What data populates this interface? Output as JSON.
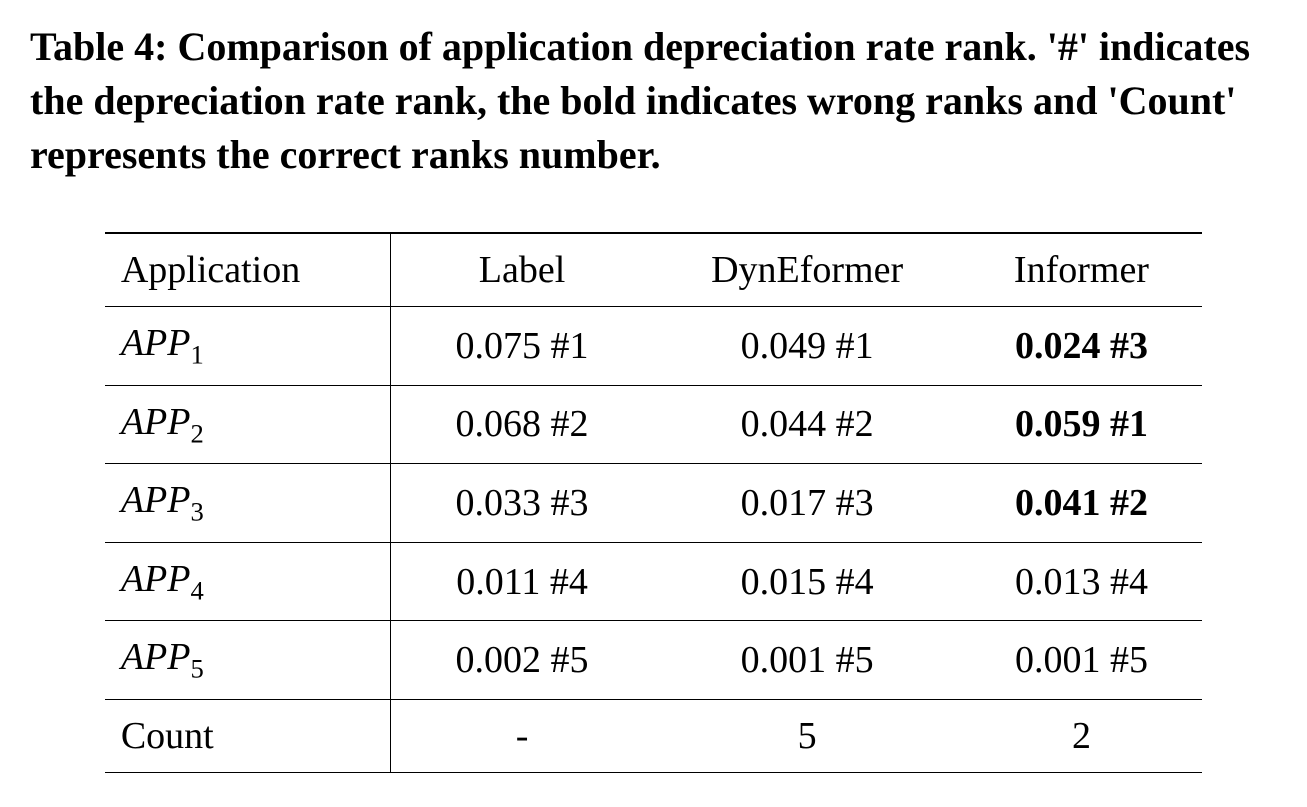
{
  "caption": "Table 4: Comparison of application depreciation rate rank. '#' indicates the depreciation rate rank, the bold indicates wrong ranks and 'Count' represents the correct ranks number.",
  "table": {
    "type": "table",
    "columns": [
      "Application",
      "Label",
      "DynEformer",
      "Informer"
    ],
    "col_widths": [
      "26%",
      "24%",
      "28%",
      "22%"
    ],
    "rows": [
      {
        "app_base": "APP",
        "app_sub": "1",
        "label": "0.075 #1",
        "dyneformer": "0.049 #1",
        "informer": "0.024 #3",
        "informer_bold": true
      },
      {
        "app_base": "APP",
        "app_sub": "2",
        "label": "0.068 #2",
        "dyneformer": "0.044 #2",
        "informer": "0.059 #1",
        "informer_bold": true
      },
      {
        "app_base": "APP",
        "app_sub": "3",
        "label": "0.033 #3",
        "dyneformer": "0.017 #3",
        "informer": "0.041 #2",
        "informer_bold": true
      },
      {
        "app_base": "APP",
        "app_sub": "4",
        "label": "0.011 #4",
        "dyneformer": "0.015 #4",
        "informer": "0.013 #4",
        "informer_bold": false
      },
      {
        "app_base": "APP",
        "app_sub": "5",
        "label": "0.002 #5",
        "dyneformer": "0.001 #5",
        "informer": "0.001 #5",
        "informer_bold": false
      }
    ],
    "count_row": {
      "label": "Count",
      "col1": "-",
      "col2": "5",
      "col3": "2"
    },
    "text_color": "#000000",
    "background_color": "#ffffff",
    "border_color": "#000000",
    "caption_fontsize": 40,
    "cell_fontsize": 38
  }
}
